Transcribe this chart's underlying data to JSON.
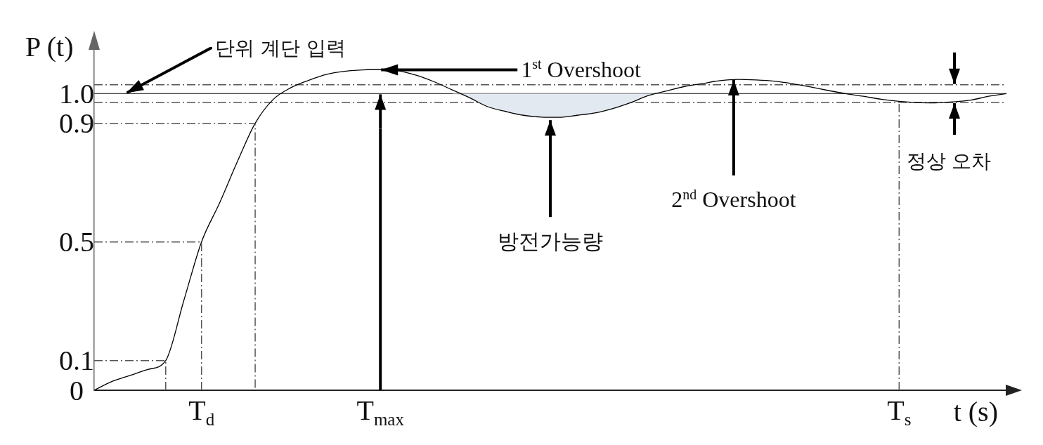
{
  "chart_data": {
    "type": "line",
    "xlabel": "t (s)",
    "ylabel": "P (t)",
    "categories": [
      null,
      null,
      null,
      null,
      null,
      null,
      "T$_{d}$",
      null,
      null,
      null,
      null,
      null,
      null,
      null,
      null,
      null,
      "T$_{max}$",
      null,
      null,
      null,
      null,
      null,
      null,
      null,
      null,
      null,
      null,
      null,
      null,
      null,
      null,
      null,
      null,
      null,
      null,
      null,
      null,
      null,
      null,
      null,
      null,
      null,
      null,
      null,
      null,
      "T$_{s}$",
      null,
      null,
      null,
      null,
      null,
      null
    ],
    "series": [
      {
        "name": "단위 계단 입력",
        "color": "#444444",
        "values": [
          1,
          1,
          1,
          1,
          1,
          1,
          1,
          1,
          1,
          1,
          1,
          1,
          1,
          1,
          1,
          1,
          1,
          1,
          1,
          1,
          1,
          1,
          1,
          1,
          1,
          1,
          1,
          1,
          1,
          1,
          1,
          1,
          1,
          1,
          1,
          1,
          1,
          1,
          1,
          1,
          1,
          1,
          1,
          1,
          1,
          1,
          1,
          1,
          1,
          1,
          1,
          1
        ]
      },
      {
        "color": "#000000",
        "values": [
          0,
          0.03,
          0.05,
          0.07,
          0.1,
          0.3,
          0.5,
          0.63,
          0.77,
          0.9,
          0.98,
          1.02,
          1.045,
          1.065,
          1.075,
          1.08,
          1.082,
          1.077,
          1.062,
          1.04,
          1.013,
          0.986,
          0.956,
          0.94,
          0.927,
          0.921,
          0.92,
          0.927,
          0.935,
          0.95,
          0.97,
          0.994,
          1.009,
          1.024,
          1.034,
          1.044,
          1.048,
          1.046,
          1.042,
          1.034,
          1.023,
          1.011,
          1,
          0.991,
          0.981,
          0.974,
          0.97,
          0.969,
          0.972,
          0.978,
          0.991,
          1
        ],
        "lower": [
          null,
          null,
          null,
          null,
          null,
          null,
          null,
          null,
          null,
          null,
          null,
          null,
          null,
          null,
          null,
          null,
          null,
          null,
          null,
          null,
          1,
          0.986,
          0.956,
          0.94,
          0.927,
          0.921,
          0.92,
          0.927,
          0.935,
          0.95,
          0.97,
          0.994,
          1,
          null,
          null,
          null,
          null,
          null,
          null,
          null,
          null,
          null,
          null,
          null,
          null,
          null,
          null,
          null,
          null,
          null,
          null,
          null
        ],
        "upper": [
          null,
          null,
          null,
          null,
          null,
          null,
          null,
          null,
          null,
          null,
          null,
          null,
          null,
          null,
          null,
          null,
          null,
          null,
          null,
          null,
          1,
          1,
          1,
          1,
          1,
          1,
          1,
          1,
          1,
          1,
          1,
          1,
          1,
          null,
          null,
          null,
          null,
          null,
          null,
          null,
          null,
          null,
          null,
          null,
          null,
          null,
          null,
          null,
          null,
          null,
          null,
          null
        ]
      },
      {
        "type": "step",
        "color": "#555555",
        "line_style": "dashed",
        "values": [
          0.1,
          0.1,
          0.1,
          0.1,
          0,
          null,
          null,
          null,
          null,
          null,
          null,
          null,
          null,
          null,
          null,
          null,
          null,
          null,
          null,
          null,
          null,
          null,
          null,
          null,
          null,
          null,
          null,
          null,
          null,
          null,
          null,
          null,
          null,
          null,
          null,
          null,
          null,
          null,
          null,
          null,
          null,
          null,
          null,
          null,
          null,
          null,
          null,
          null,
          null,
          null,
          null,
          null
        ]
      },
      {
        "type": "step",
        "color": "#555555",
        "line_style": "dashed",
        "values": [
          0.5,
          0.5,
          0.5,
          0.5,
          0.5,
          0.5,
          0,
          null,
          null,
          null,
          null,
          null,
          null,
          null,
          null,
          null,
          null,
          null,
          null,
          null,
          null,
          null,
          null,
          null,
          null,
          null,
          null,
          null,
          null,
          null,
          null,
          null,
          null,
          null,
          null,
          null,
          null,
          null,
          null,
          null,
          null,
          null,
          null,
          null,
          null,
          null,
          null,
          null,
          null,
          null,
          null,
          null
        ]
      },
      {
        "type": "step",
        "color": "#555555",
        "line_style": "dashed",
        "values": [
          0.9,
          0.9,
          0.9,
          0.9,
          0.9,
          0.9,
          0.9,
          0.9,
          0.9,
          0,
          null,
          null,
          null,
          null,
          null,
          null,
          null,
          null,
          null,
          null,
          null,
          null,
          null,
          null,
          null,
          null,
          null,
          null,
          null,
          null,
          null,
          null,
          null,
          null,
          null,
          null,
          null,
          null,
          null,
          null,
          null,
          null,
          null,
          null,
          null,
          null,
          null,
          null,
          null,
          null,
          null,
          null
        ]
      }
    ],
    "ylim": [
      0,
      1.15
    ],
    "yticks": [
      0,
      0.1,
      0.5,
      0.9,
      {
        "value": 1,
        "label": "1.0"
      }
    ],
    "ref_lines": [
      {
        "axis": "y",
        "value": 1.03,
        "color": "#555555",
        "line_style": "dashed"
      },
      {
        "axis": "y",
        "value": 0.97,
        "color": "#555555",
        "line_style": "dashed"
      },
      {
        "axis": "x",
        "value": "T$_{max}$",
        "color": "#000000",
        "line_style": "solid"
      },
      {
        "axis": "x",
        "value": "T$_{s}$",
        "color": "#555555",
        "line_style": "dashed"
      }
    ],
    "annotations": [
      {
        "text": "1$^{st}$ Overshoot",
        "x": "T$_{max}$",
        "y": 1.08
      },
      {
        "text": "2$^{nd}$ Overshoot",
        "y": 1.048
      },
      {
        "text": "방전가능량",
        "y": 0.92
      },
      {
        "text": "정상 오차",
        "y": 0.97
      }
    ]
  }
}
